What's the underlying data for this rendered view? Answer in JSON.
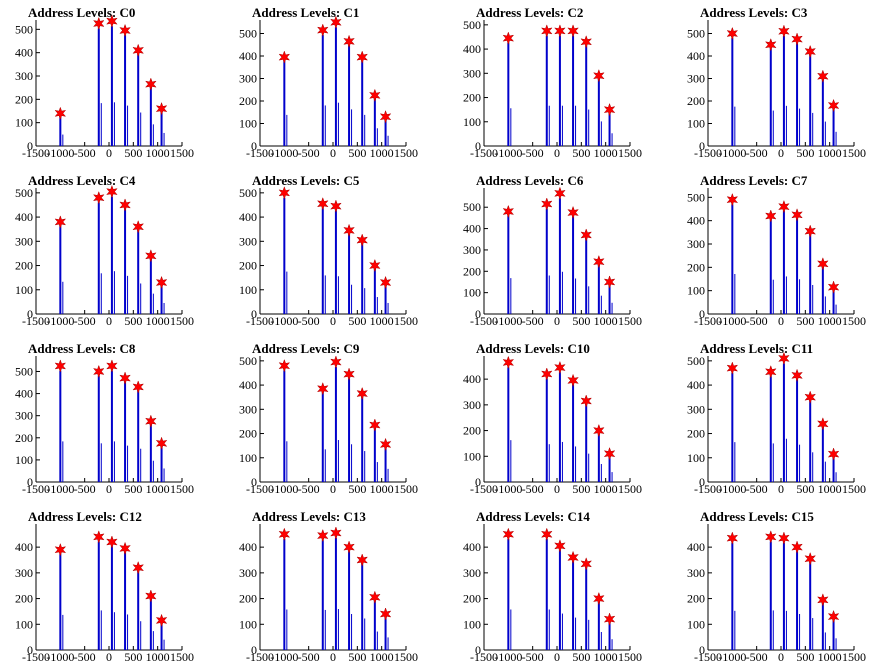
{
  "chart_data": {
    "type": "bar",
    "grid": false,
    "xlim": [
      -1500,
      1500
    ],
    "xticks": [
      -1500,
      -1000,
      -500,
      0,
      500,
      1000,
      1500
    ],
    "marker": "red-star",
    "bar_color": "#0000cc",
    "marker_color": "#ff0000",
    "panels": [
      {
        "title": "Address Levels: C0",
        "ylim": [
          0,
          540
        ],
        "yticks": [
          0,
          100,
          200,
          300,
          400,
          500
        ],
        "peaks_x": [
          -1000,
          -210,
          60,
          330,
          600,
          860,
          1080
        ],
        "peaks_y": [
          140,
          525,
          535,
          495,
          410,
          265,
          160
        ]
      },
      {
        "title": "Address Levels: C1",
        "ylim": [
          0,
          560
        ],
        "yticks": [
          0,
          100,
          200,
          300,
          400,
          500
        ],
        "peaks_x": [
          -1000,
          -210,
          60,
          330,
          600,
          860,
          1080
        ],
        "peaks_y": [
          395,
          515,
          550,
          465,
          395,
          225,
          130
        ]
      },
      {
        "title": "Address Levels: C2",
        "ylim": [
          0,
          520
        ],
        "yticks": [
          0,
          100,
          200,
          300,
          400,
          500
        ],
        "peaks_x": [
          -1000,
          -210,
          60,
          330,
          600,
          860,
          1080
        ],
        "peaks_y": [
          445,
          475,
          475,
          475,
          430,
          290,
          150
        ]
      },
      {
        "title": "Address Levels: C3",
        "ylim": [
          0,
          560
        ],
        "yticks": [
          0,
          100,
          200,
          300,
          400,
          500
        ],
        "peaks_x": [
          -1000,
          -210,
          60,
          330,
          600,
          860,
          1080
        ],
        "peaks_y": [
          500,
          450,
          510,
          475,
          420,
          310,
          180
        ]
      },
      {
        "title": "Address Levels: C4",
        "ylim": [
          0,
          520
        ],
        "yticks": [
          0,
          100,
          200,
          300,
          400,
          500
        ],
        "peaks_x": [
          -1000,
          -210,
          60,
          330,
          600,
          860,
          1080
        ],
        "peaks_y": [
          380,
          480,
          505,
          450,
          360,
          240,
          130
        ]
      },
      {
        "title": "Address Levels: C5",
        "ylim": [
          0,
          520
        ],
        "yticks": [
          0,
          100,
          200,
          300,
          400,
          500
        ],
        "peaks_x": [
          -1000,
          -210,
          60,
          330,
          600,
          860,
          1080
        ],
        "peaks_y": [
          500,
          455,
          445,
          345,
          305,
          200,
          130
        ]
      },
      {
        "title": "Address Levels: C6",
        "ylim": [
          0,
          590
        ],
        "yticks": [
          0,
          100,
          200,
          300,
          400,
          500
        ],
        "peaks_x": [
          -1000,
          -210,
          60,
          330,
          600,
          860,
          1080
        ],
        "peaks_y": [
          480,
          515,
          565,
          475,
          370,
          245,
          150
        ]
      },
      {
        "title": "Address Levels: C7",
        "ylim": [
          0,
          540
        ],
        "yticks": [
          0,
          100,
          200,
          300,
          400,
          500
        ],
        "peaks_x": [
          -1000,
          -210,
          60,
          330,
          600,
          860,
          1080
        ],
        "peaks_y": [
          490,
          420,
          460,
          425,
          355,
          215,
          115
        ]
      },
      {
        "title": "Address Levels: C8",
        "ylim": [
          0,
          570
        ],
        "yticks": [
          0,
          100,
          200,
          300,
          400,
          500
        ],
        "peaks_x": [
          -1000,
          -210,
          60,
          330,
          600,
          860,
          1080
        ],
        "peaks_y": [
          525,
          500,
          525,
          470,
          430,
          275,
          175
        ]
      },
      {
        "title": "Address Levels: C9",
        "ylim": [
          0,
          520
        ],
        "yticks": [
          0,
          100,
          200,
          300,
          400,
          500
        ],
        "peaks_x": [
          -1000,
          -210,
          60,
          330,
          600,
          860,
          1080
        ],
        "peaks_y": [
          480,
          385,
          495,
          445,
          365,
          235,
          155
        ]
      },
      {
        "title": "Address Levels: C10",
        "ylim": [
          0,
          490
        ],
        "yticks": [
          0,
          100,
          200,
          300,
          400
        ],
        "peaks_x": [
          -1000,
          -210,
          60,
          330,
          600,
          860,
          1080
        ],
        "peaks_y": [
          465,
          420,
          445,
          395,
          315,
          200,
          110
        ]
      },
      {
        "title": "Address Levels: C11",
        "ylim": [
          0,
          520
        ],
        "yticks": [
          0,
          100,
          200,
          300,
          400,
          500
        ],
        "peaks_x": [
          -1000,
          -210,
          60,
          330,
          600,
          860,
          1080
        ],
        "peaks_y": [
          470,
          455,
          510,
          440,
          350,
          240,
          115
        ]
      },
      {
        "title": "Address Levels: C12",
        "ylim": [
          0,
          490
        ],
        "yticks": [
          0,
          100,
          200,
          300,
          400
        ],
        "peaks_x": [
          -1000,
          -210,
          60,
          330,
          600,
          860,
          1080
        ],
        "peaks_y": [
          390,
          440,
          420,
          395,
          320,
          210,
          115
        ]
      },
      {
        "title": "Address Levels: C13",
        "ylim": [
          0,
          490
        ],
        "yticks": [
          0,
          100,
          200,
          300,
          400
        ],
        "peaks_x": [
          -1000,
          -210,
          60,
          330,
          600,
          860,
          1080
        ],
        "peaks_y": [
          450,
          445,
          455,
          400,
          350,
          205,
          140
        ]
      },
      {
        "title": "Address Levels: C14",
        "ylim": [
          0,
          490
        ],
        "yticks": [
          0,
          100,
          200,
          300,
          400
        ],
        "peaks_x": [
          -1000,
          -210,
          60,
          330,
          600,
          860,
          1080
        ],
        "peaks_y": [
          450,
          450,
          405,
          360,
          335,
          200,
          120
        ]
      },
      {
        "title": "Address Levels: C15",
        "ylim": [
          0,
          490
        ],
        "yticks": [
          0,
          100,
          200,
          300,
          400
        ],
        "peaks_x": [
          -1000,
          -210,
          60,
          330,
          600,
          860,
          1080
        ],
        "peaks_y": [
          435,
          440,
          435,
          400,
          355,
          195,
          130
        ]
      }
    ]
  }
}
